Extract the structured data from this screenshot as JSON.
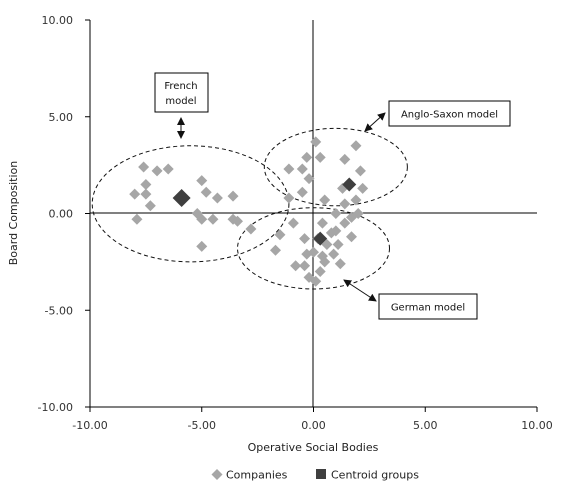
{
  "chart_data": {
    "type": "scatter",
    "xlabel": "Operative Social Bodies",
    "ylabel": "Board Composition",
    "xlim": [
      -10,
      10
    ],
    "ylim": [
      -10,
      10
    ],
    "x_ticks": [
      "-10.00",
      "-5.00",
      "0.00",
      "5.00",
      "10.00"
    ],
    "y_ticks": [
      "10.00",
      "5.00",
      "0.00",
      "-5.00",
      "-10.00"
    ],
    "grid": false,
    "legend_position": "bottom",
    "colors": {
      "companies": "#a6a6a6",
      "centroids": "#3f3f3f"
    },
    "series": [
      {
        "name": "Companies",
        "marker": "diamond",
        "points": [
          [
            -7.6,
            2.4
          ],
          [
            -7.0,
            2.2
          ],
          [
            -6.5,
            2.3
          ],
          [
            -7.5,
            1.5
          ],
          [
            -8.0,
            1.0
          ],
          [
            -7.5,
            1.0
          ],
          [
            -7.3,
            0.4
          ],
          [
            -7.9,
            -0.3
          ],
          [
            -5.0,
            1.7
          ],
          [
            -4.8,
            1.1
          ],
          [
            -4.3,
            0.8
          ],
          [
            -3.6,
            0.9
          ],
          [
            -5.2,
            0.0
          ],
          [
            -5.0,
            -0.3
          ],
          [
            -4.5,
            -0.3
          ],
          [
            -3.6,
            -0.3
          ],
          [
            -3.4,
            -0.4
          ],
          [
            -5.0,
            -1.7
          ],
          [
            -2.8,
            -0.8
          ],
          [
            0.1,
            3.7
          ],
          [
            0.3,
            2.9
          ],
          [
            -0.3,
            2.9
          ],
          [
            1.9,
            3.5
          ],
          [
            1.4,
            2.8
          ],
          [
            -1.1,
            2.3
          ],
          [
            -0.5,
            2.3
          ],
          [
            -0.2,
            1.8
          ],
          [
            1.3,
            1.3
          ],
          [
            2.1,
            2.2
          ],
          [
            2.2,
            1.3
          ],
          [
            -0.5,
            1.1
          ],
          [
            -1.1,
            0.8
          ],
          [
            0.5,
            0.7
          ],
          [
            1.4,
            0.5
          ],
          [
            1.0,
            0.0
          ],
          [
            1.9,
            0.7
          ],
          [
            1.7,
            -0.2
          ],
          [
            2.0,
            0.0
          ],
          [
            -0.9,
            -0.5
          ],
          [
            0.4,
            -0.5
          ],
          [
            1.4,
            -0.5
          ],
          [
            1.0,
            -0.9
          ],
          [
            -1.5,
            -1.1
          ],
          [
            0.8,
            -1.0
          ],
          [
            1.7,
            -1.2
          ],
          [
            -0.4,
            -1.3
          ],
          [
            0.2,
            -1.3
          ],
          [
            0.6,
            -1.6
          ],
          [
            1.1,
            -1.6
          ],
          [
            0.0,
            -2.0
          ],
          [
            0.9,
            -2.1
          ],
          [
            -1.7,
            -1.9
          ],
          [
            0.4,
            -2.2
          ],
          [
            -0.8,
            -2.7
          ],
          [
            -0.4,
            -2.7
          ],
          [
            0.5,
            -2.5
          ],
          [
            1.2,
            -2.6
          ],
          [
            0.3,
            -3.0
          ],
          [
            -0.2,
            -3.3
          ],
          [
            0.1,
            -3.5
          ],
          [
            -0.3,
            -2.1
          ]
        ]
      },
      {
        "name": "Centroid groups",
        "marker": "square",
        "points": [
          [
            -5.9,
            0.8
          ],
          [
            1.6,
            1.5
          ],
          [
            0.3,
            -1.3
          ]
        ]
      }
    ],
    "clusters": [
      {
        "name": "French model",
        "cx": -5.5,
        "cy": 0.5,
        "rx": 4.4,
        "ry": 3.0
      },
      {
        "name": "Anglo-Saxon model",
        "cx": 1.0,
        "cy": 2.4,
        "rx": 3.2,
        "ry": 2.0
      },
      {
        "name": "German model",
        "cx": 0.0,
        "cy": -1.8,
        "rx": 3.4,
        "ry": 2.1
      }
    ],
    "annotations": [
      {
        "text": [
          "French",
          "model"
        ],
        "points_to": "French model"
      },
      {
        "text": [
          "Anglo-Saxon model"
        ],
        "points_to": "Anglo-Saxon model"
      },
      {
        "text": [
          "German model"
        ],
        "points_to": "German model"
      }
    ]
  }
}
